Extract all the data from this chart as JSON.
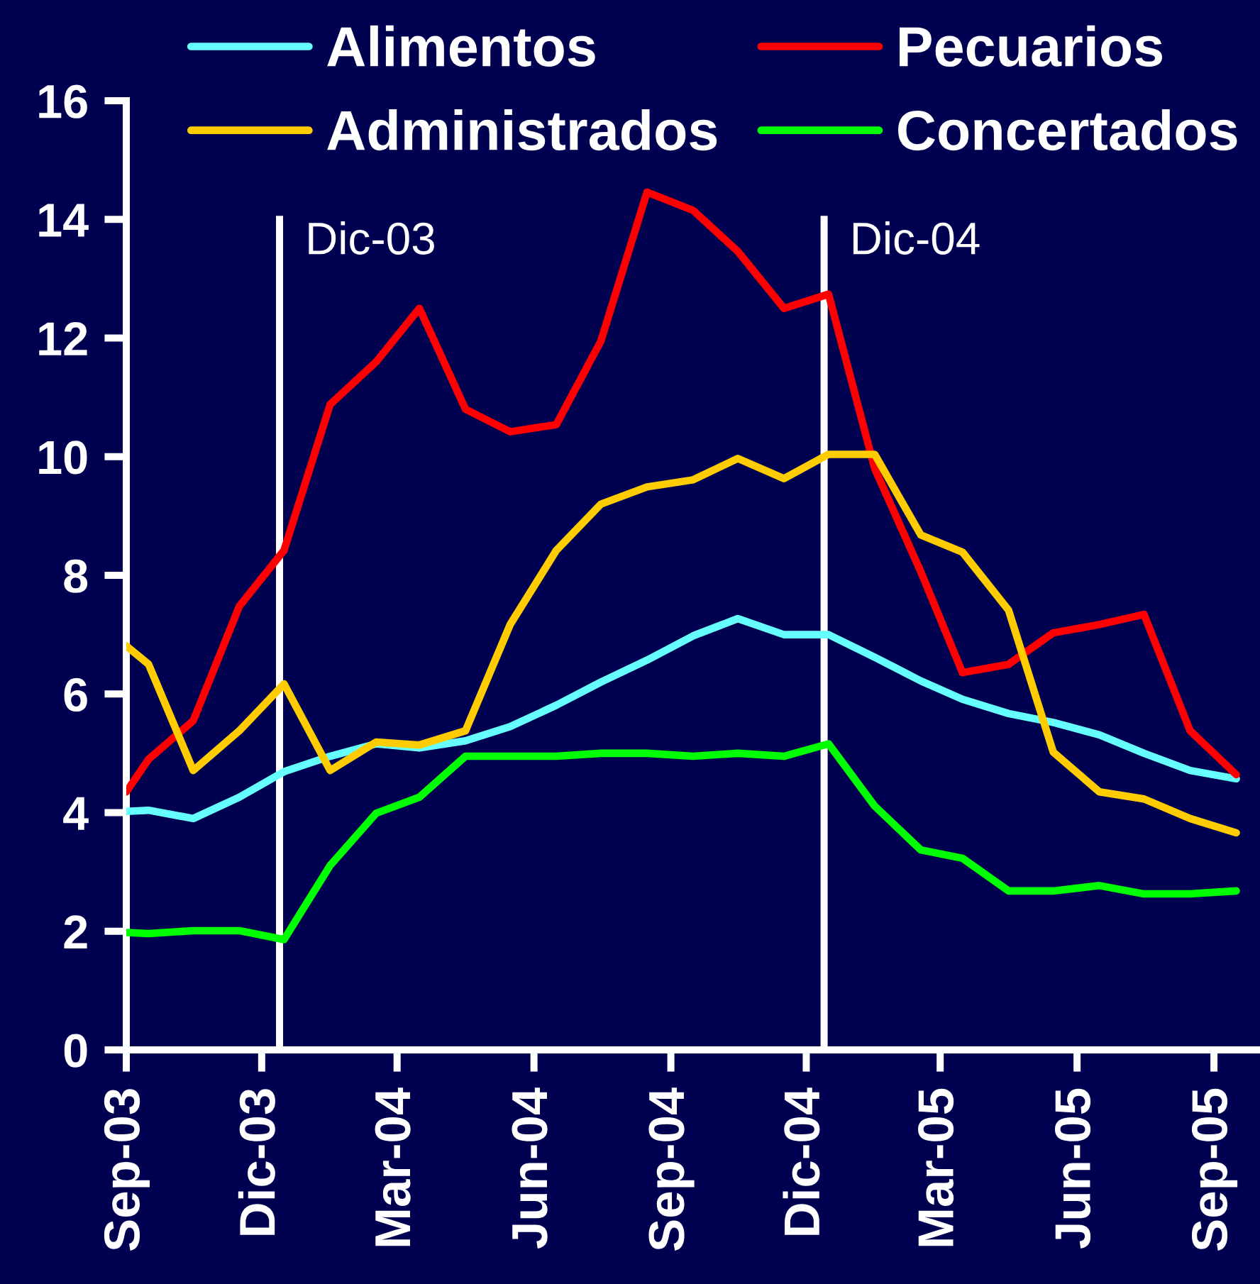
{
  "chart_data": {
    "type": "line",
    "x": [
      "2003-09-01",
      "2003-09-16",
      "2003-10-16",
      "2003-11-16",
      "2003-12-16",
      "2004-01-16",
      "2004-02-16",
      "2004-03-16",
      "2004-04-16",
      "2004-05-16",
      "2004-06-16",
      "2004-07-16",
      "2004-08-16",
      "2004-09-16",
      "2004-10-16",
      "2004-11-16",
      "2004-12-16",
      "2005-01-16",
      "2005-02-16",
      "2005-03-16",
      "2005-04-16",
      "2005-05-16",
      "2005-06-16",
      "2005-07-16",
      "2005-08-16",
      "2005-09-16"
    ],
    "series": [
      {
        "name": "Alimentos",
        "color": "#66ffff",
        "values": [
          4.02,
          4.04,
          3.9,
          4.26,
          4.69,
          4.95,
          5.16,
          5.09,
          5.21,
          5.45,
          5.81,
          6.2,
          6.57,
          6.98,
          7.27,
          7.0,
          7.0,
          6.62,
          6.22,
          5.91,
          5.67,
          5.52,
          5.31,
          5.0,
          4.71,
          4.57
        ]
      },
      {
        "name": "Pecuarios",
        "color": "#ff0000",
        "values": [
          4.35,
          4.9,
          5.55,
          7.48,
          8.42,
          10.88,
          11.6,
          12.5,
          10.8,
          10.42,
          10.54,
          11.95,
          14.46,
          14.15,
          13.46,
          12.5,
          12.74,
          9.8,
          8.06,
          6.36,
          6.5,
          7.03,
          7.17,
          7.34,
          5.38,
          4.64
        ]
      },
      {
        "name": "Administrados",
        "color": "#ffcc00",
        "values": [
          6.81,
          6.5,
          4.71,
          5.38,
          6.17,
          4.71,
          5.19,
          5.14,
          5.38,
          7.17,
          8.42,
          9.2,
          9.49,
          9.61,
          9.97,
          9.63,
          10.04,
          10.04,
          8.68,
          8.39,
          7.41,
          5.02,
          4.35,
          4.23,
          3.9,
          3.66
        ]
      },
      {
        "name": "Concertados",
        "color": "#00ff00",
        "values": [
          1.98,
          1.96,
          2.01,
          2.01,
          1.86,
          3.11,
          3.99,
          4.26,
          4.95,
          4.95,
          4.95,
          5.0,
          5.0,
          4.95,
          5.0,
          4.95,
          5.16,
          4.11,
          3.37,
          3.23,
          2.68,
          2.68,
          2.77,
          2.63,
          2.63,
          2.68
        ]
      }
    ],
    "xlim": [
      "2003-09-01",
      "2005-10-01"
    ],
    "xticks": [
      {
        "value": "2003-09-01",
        "label": "Sep-03"
      },
      {
        "value": "2003-12-01",
        "label": "Dic-03"
      },
      {
        "value": "2004-03-01",
        "label": "Mar-04"
      },
      {
        "value": "2004-06-01",
        "label": "Jun-04"
      },
      {
        "value": "2004-09-01",
        "label": "Sep-04"
      },
      {
        "value": "2004-12-01",
        "label": "Dic-04"
      },
      {
        "value": "2005-03-01",
        "label": "Mar-05"
      },
      {
        "value": "2005-06-01",
        "label": "Jun-05"
      },
      {
        "value": "2005-09-01",
        "label": "Sep-05"
      }
    ],
    "ylim": [
      0,
      16
    ],
    "yticks": [
      0,
      2,
      4,
      6,
      8,
      10,
      12,
      14,
      16
    ],
    "ref_lines": [
      {
        "axis": "x",
        "value": "2003-12-13",
        "label": "Dic-03",
        "color": "#ffffff"
      },
      {
        "axis": "x",
        "value": "2004-12-13",
        "label": "Dic-04",
        "color": "#ffffff"
      }
    ],
    "legend": "top",
    "marker": "none",
    "line_style": "solid"
  }
}
